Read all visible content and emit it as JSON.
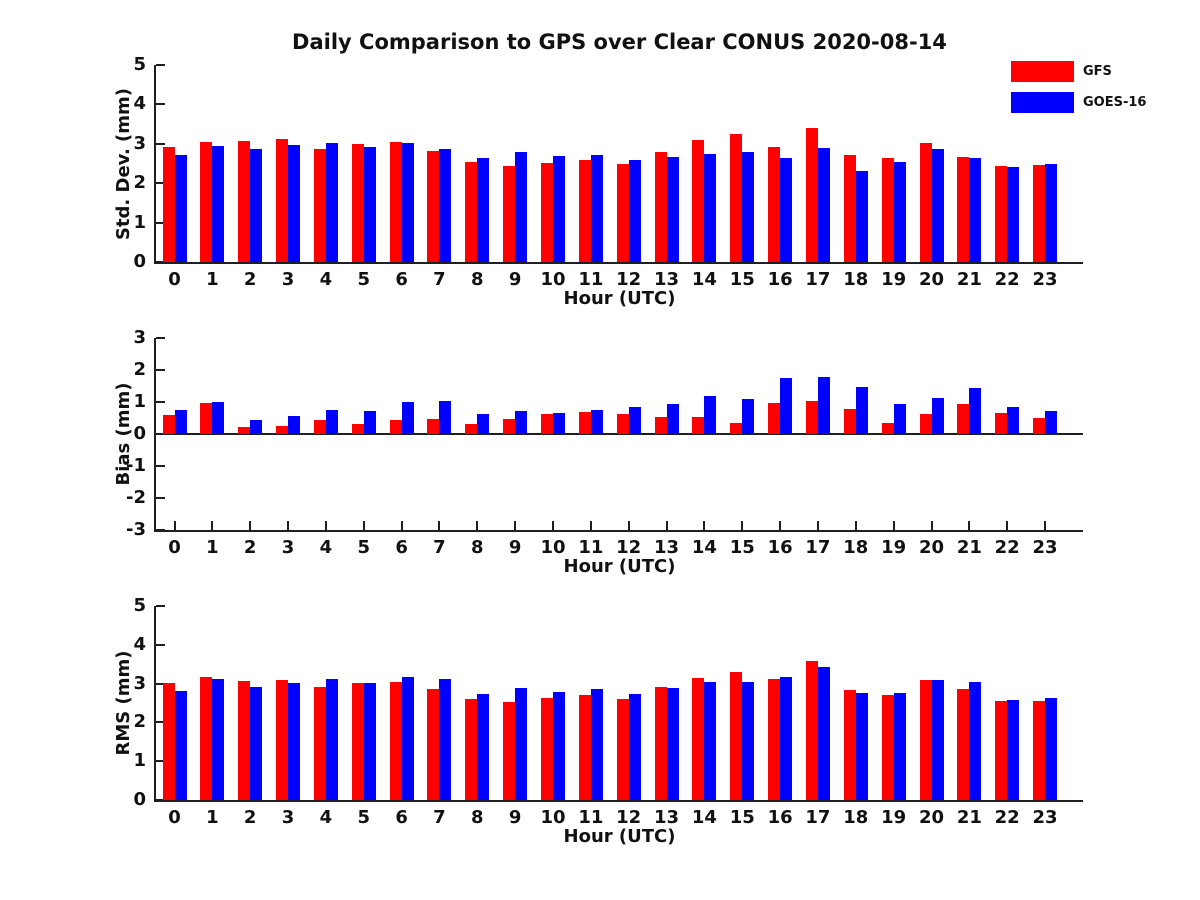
{
  "title": "Daily Comparison to GPS over Clear CONUS 2020-08-14",
  "legend": {
    "items": [
      {
        "label": "GFS",
        "color": "#ff0000"
      },
      {
        "label": "GOES-16",
        "color": "#0000ff"
      }
    ]
  },
  "colors": {
    "gfs": "#ff0000",
    "goes16": "#0000ff",
    "axis": "#1f1f1f",
    "text": "#111111"
  },
  "chart_data": [
    {
      "type": "bar",
      "panel": "std_dev",
      "ylabel": "Std. Dev. (mm)",
      "xlabel": "Hour (UTC)",
      "ylim": [
        0,
        5
      ],
      "yticks": [
        0,
        1,
        2,
        3,
        4,
        5
      ],
      "grid": false,
      "legend_position": "outside-top-right",
      "categories": [
        "0",
        "1",
        "2",
        "3",
        "4",
        "5",
        "6",
        "7",
        "8",
        "9",
        "10",
        "11",
        "12",
        "13",
        "14",
        "15",
        "16",
        "17",
        "18",
        "19",
        "20",
        "21",
        "22",
        "23"
      ],
      "series": [
        {
          "name": "GFS",
          "color": "#ff0000",
          "values": [
            2.93,
            3.05,
            3.08,
            3.11,
            2.87,
            3.0,
            3.04,
            2.82,
            2.54,
            2.44,
            2.51,
            2.59,
            2.48,
            2.8,
            3.09,
            3.26,
            2.93,
            3.41,
            2.71,
            2.64,
            3.02,
            2.66,
            2.43,
            2.45
          ]
        },
        {
          "name": "GOES-16",
          "color": "#0000ff",
          "values": [
            2.71,
            2.95,
            2.87,
            2.98,
            3.03,
            2.92,
            3.01,
            2.88,
            2.64,
            2.79,
            2.69,
            2.72,
            2.6,
            2.67,
            2.73,
            2.78,
            2.65,
            2.89,
            2.31,
            2.55,
            2.88,
            2.64,
            2.41,
            2.49
          ]
        }
      ]
    },
    {
      "type": "bar",
      "panel": "bias",
      "ylabel": "Bias (mm)",
      "xlabel": "Hour (UTC)",
      "ylim": [
        -3,
        3
      ],
      "yticks": [
        3,
        2,
        1,
        0,
        -1,
        -2,
        -3
      ],
      "grid": false,
      "categories": [
        "0",
        "1",
        "2",
        "3",
        "4",
        "5",
        "6",
        "7",
        "8",
        "9",
        "10",
        "11",
        "12",
        "13",
        "14",
        "15",
        "16",
        "17",
        "18",
        "19",
        "20",
        "21",
        "22",
        "23"
      ],
      "series": [
        {
          "name": "GFS",
          "color": "#ff0000",
          "values": [
            0.6,
            0.97,
            0.23,
            0.25,
            0.45,
            0.32,
            0.45,
            0.46,
            0.3,
            0.46,
            0.62,
            0.68,
            0.64,
            0.53,
            0.53,
            0.34,
            0.98,
            1.02,
            0.77,
            0.34,
            0.63,
            0.95,
            0.66,
            0.51
          ]
        },
        {
          "name": "GOES-16",
          "color": "#0000ff",
          "values": [
            0.75,
            1.0,
            0.45,
            0.57,
            0.75,
            0.72,
            1.0,
            1.03,
            0.63,
            0.72,
            0.67,
            0.76,
            0.83,
            0.94,
            1.18,
            1.1,
            1.75,
            1.78,
            1.48,
            0.93,
            1.13,
            1.45,
            0.85,
            0.73
          ]
        }
      ]
    },
    {
      "type": "bar",
      "panel": "rms",
      "ylabel": "RMS (mm)",
      "xlabel": "Hour (UTC)",
      "ylim": [
        0,
        5
      ],
      "yticks": [
        0,
        1,
        2,
        3,
        4,
        5
      ],
      "grid": false,
      "categories": [
        "0",
        "1",
        "2",
        "3",
        "4",
        "5",
        "6",
        "7",
        "8",
        "9",
        "10",
        "11",
        "12",
        "13",
        "14",
        "15",
        "16",
        "17",
        "18",
        "19",
        "20",
        "21",
        "22",
        "23"
      ],
      "series": [
        {
          "name": "GFS",
          "color": "#ff0000",
          "values": [
            3.02,
            3.18,
            3.07,
            3.09,
            2.9,
            3.02,
            3.05,
            2.87,
            2.6,
            2.52,
            2.62,
            2.71,
            2.6,
            2.9,
            3.15,
            3.3,
            3.13,
            3.57,
            2.84,
            2.71,
            3.08,
            2.86,
            2.56,
            2.56
          ]
        },
        {
          "name": "GOES-16",
          "color": "#0000ff",
          "values": [
            2.82,
            3.12,
            2.91,
            3.02,
            3.11,
            3.01,
            3.16,
            3.11,
            2.74,
            2.89,
            2.79,
            2.87,
            2.74,
            2.89,
            3.03,
            3.05,
            3.17,
            3.43,
            2.77,
            2.75,
            3.1,
            3.05,
            2.59,
            2.64
          ]
        }
      ]
    }
  ]
}
